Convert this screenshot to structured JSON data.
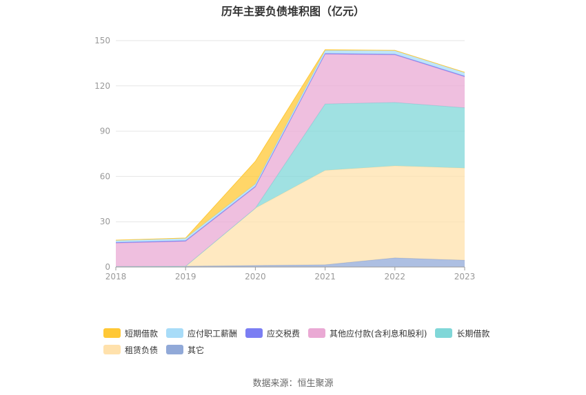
{
  "chart_data": {
    "type": "area",
    "stacked": true,
    "title": "历年主要负债堆积图（亿元）",
    "source": "数据来源：恒生聚源",
    "x": [
      "2018",
      "2019",
      "2020",
      "2021",
      "2022",
      "2023"
    ],
    "ylim": [
      0,
      150
    ],
    "yticks": [
      "0",
      "30",
      "60",
      "90",
      "120",
      "150"
    ],
    "grid": true,
    "legend_position": "bottom",
    "series": [
      {
        "name": "其它",
        "color": "#91a9d8",
        "values": [
          0.3,
          0.5,
          1.0,
          1.5,
          6.0,
          4.5
        ]
      },
      {
        "name": "租赁负债",
        "color": "#ffe1ac",
        "values": [
          0,
          0,
          38,
          62.5,
          61,
          61
        ]
      },
      {
        "name": "长期借款",
        "color": "#80d7d8",
        "values": [
          0,
          0,
          0,
          44,
          42,
          40
        ]
      },
      {
        "name": "其他应付款(含利息和股利)",
        "color": "#eaa9d4",
        "values": [
          15.5,
          16.5,
          14,
          33,
          31.5,
          20.5
        ]
      },
      {
        "name": "应交税费",
        "color": "#7b7ef3",
        "values": [
          0.5,
          0.5,
          0.5,
          0.5,
          0.5,
          0.5
        ]
      },
      {
        "name": "应付职工薪酬",
        "color": "#a8dcf8",
        "values": [
          1.5,
          1.5,
          1.5,
          2,
          2.5,
          2.5
        ]
      },
      {
        "name": "短期借款",
        "color": "#ffc836",
        "values": [
          0,
          0.2,
          15,
          0.5,
          0,
          0
        ]
      }
    ],
    "legend_rows": [
      [
        {
          "name": "短期借款",
          "color": "#ffc836"
        },
        {
          "name": "应付职工薪酬",
          "color": "#a8dcf8"
        },
        {
          "name": "应交税费",
          "color": "#7b7ef3"
        },
        {
          "name": "其他应付款(含利息和股利)",
          "color": "#eaa9d4"
        },
        {
          "name": "长期借款",
          "color": "#80d7d8"
        }
      ],
      [
        {
          "name": "租赁负债",
          "color": "#ffe1ac"
        },
        {
          "name": "其它",
          "color": "#91a9d8"
        }
      ]
    ]
  }
}
